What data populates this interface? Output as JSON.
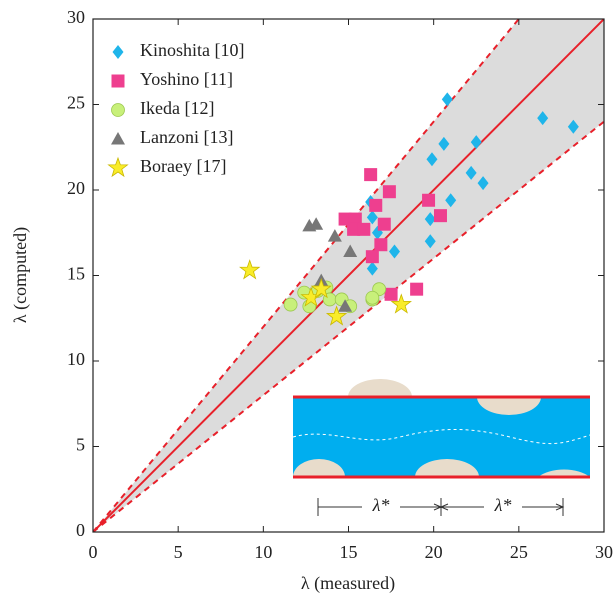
{
  "chart_data": {
    "type": "scatter",
    "xlabel": "λ (measured)",
    "ylabel": "λ (computed)",
    "xlim": [
      0,
      30
    ],
    "ylim": [
      0,
      30
    ],
    "xticks": [
      0,
      5,
      10,
      15,
      20,
      25,
      30
    ],
    "yticks": [
      0,
      5,
      10,
      15,
      20,
      25,
      30
    ],
    "reference_slopes": [
      0.8,
      1,
      1.2
    ],
    "reference_color": "#e8202a",
    "band_color": "#dcdcdc",
    "legend": "upper left",
    "series": [
      {
        "name": "Kinoshita [10]",
        "color": "#1fb5ea",
        "marker": "diamond",
        "x": [
          20.8,
          26.4,
          28.2,
          22.5,
          20.6,
          19.9,
          22.2,
          22.9,
          21.0,
          19.8,
          16.4,
          16.3,
          16.7,
          17.7,
          19.8,
          16.4
        ],
        "values": [
          25.3,
          24.2,
          23.7,
          22.8,
          22.7,
          21.8,
          21.0,
          20.4,
          19.4,
          18.3,
          18.4,
          19.3,
          17.5,
          16.4,
          17.0,
          15.4
        ]
      },
      {
        "name": "Yoshino [11]",
        "color": "#ee3f8f",
        "marker": "square",
        "x": [
          16.3,
          17.4,
          19.7,
          20.4,
          14.8,
          15.4,
          15.3,
          15.9,
          17.1,
          16.6,
          16.9,
          16.4,
          17.5,
          19.0
        ],
        "values": [
          20.9,
          19.9,
          19.4,
          18.5,
          18.3,
          18.3,
          17.7,
          17.7,
          18.0,
          19.1,
          16.8,
          16.1,
          13.9,
          14.2
        ]
      },
      {
        "name": "Ikeda [12]",
        "color": "#c8f07a",
        "marker": "circle",
        "x": [
          11.6,
          12.4,
          13.2,
          13.7,
          13.9,
          14.6,
          15.1,
          16.4,
          16.8,
          16.4,
          12.7
        ],
        "values": [
          13.3,
          14.0,
          14.1,
          14.3,
          13.6,
          13.6,
          13.2,
          13.6,
          14.2,
          13.7,
          13.2
        ]
      },
      {
        "name": "Lanzoni [13]",
        "color": "#777777",
        "marker": "triangle",
        "x": [
          12.7,
          13.1,
          14.2,
          15.1,
          13.4,
          14.8
        ],
        "values": [
          17.9,
          18.0,
          17.3,
          16.4,
          14.7,
          13.2
        ]
      },
      {
        "name": "Boraey [17]",
        "color": "#f9ec29",
        "marker": "star",
        "x": [
          9.2,
          12.8,
          13.4,
          14.3,
          18.1
        ],
        "values": [
          15.3,
          13.7,
          14.2,
          12.6,
          13.3
        ]
      }
    ],
    "inset_labels": [
      "λ*",
      "λ*"
    ]
  }
}
